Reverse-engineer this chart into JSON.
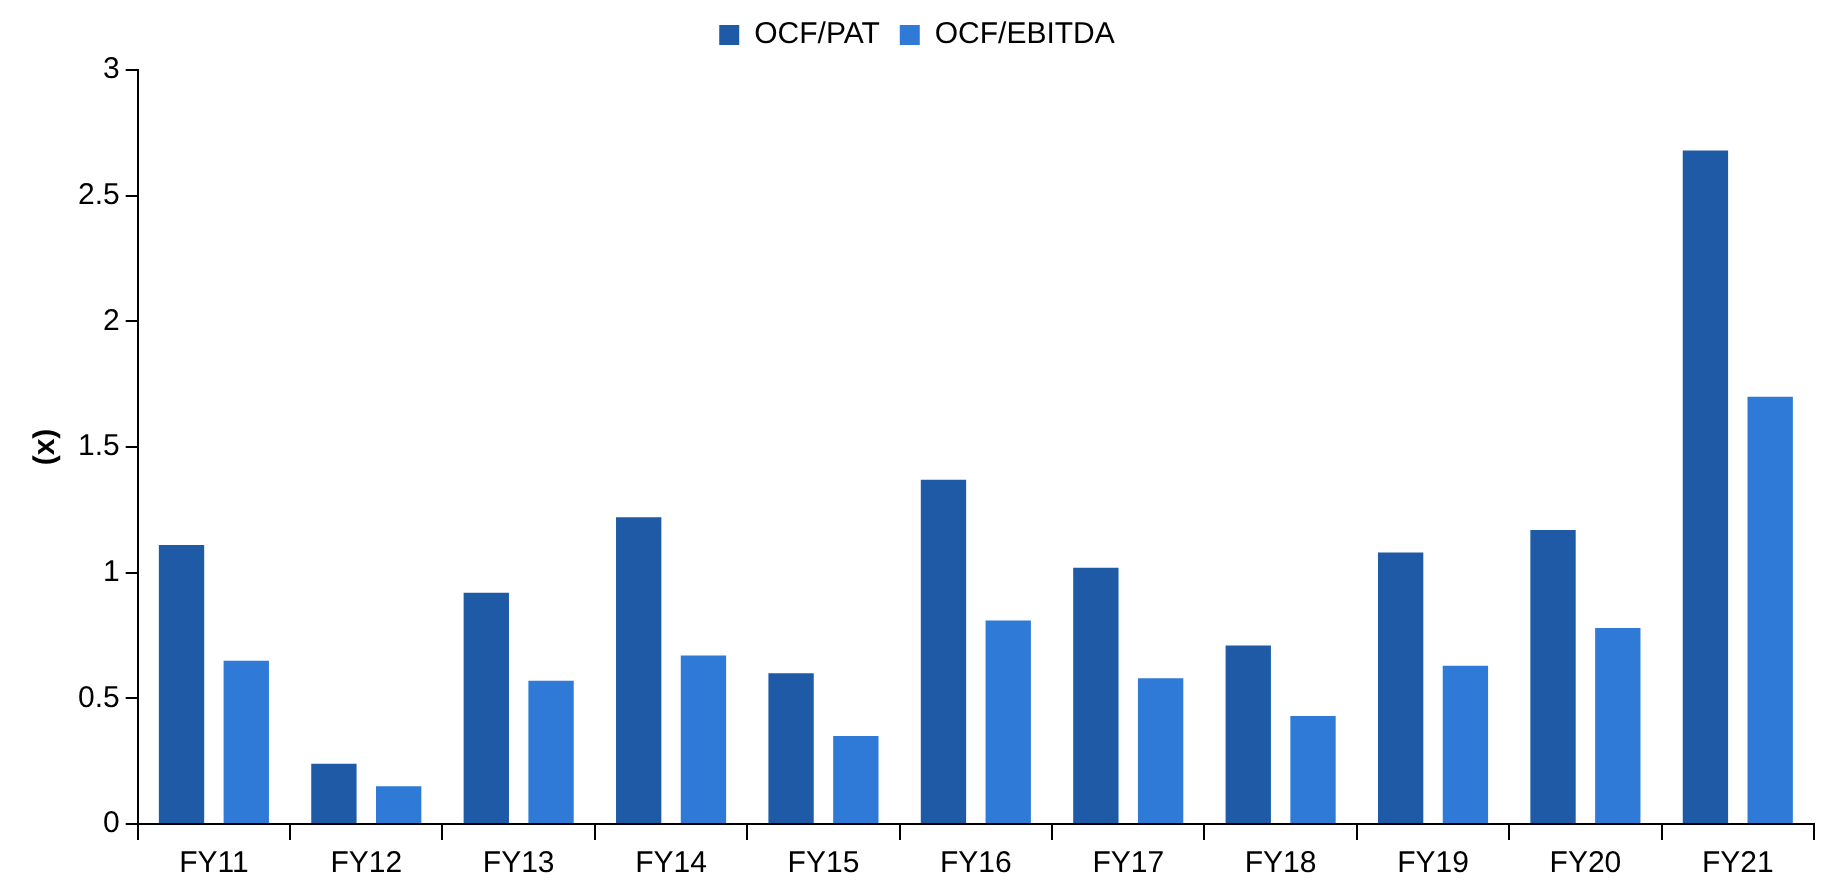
{
  "chart_data": {
    "type": "bar",
    "ylabel": "(x)",
    "categories": [
      "FY11",
      "FY12",
      "FY13",
      "FY14",
      "FY15",
      "FY16",
      "FY17",
      "FY18",
      "FY19",
      "FY20",
      "FY21"
    ],
    "series": [
      {
        "name": "OCF/PAT",
        "color": "#1f5aa6",
        "values": [
          1.11,
          0.24,
          0.92,
          1.22,
          0.6,
          1.37,
          1.02,
          0.71,
          1.08,
          1.17,
          2.68
        ]
      },
      {
        "name": "OCF/EBITDA",
        "color": "#2e7ad6",
        "values": [
          0.65,
          0.15,
          0.57,
          0.67,
          0.35,
          0.81,
          0.58,
          0.43,
          0.63,
          0.78,
          1.7
        ]
      }
    ],
    "ylim": [
      0,
      3
    ],
    "yticks": [
      0,
      0.5,
      1,
      1.5,
      2,
      2.5,
      3
    ],
    "grid": false,
    "legend": "top"
  }
}
